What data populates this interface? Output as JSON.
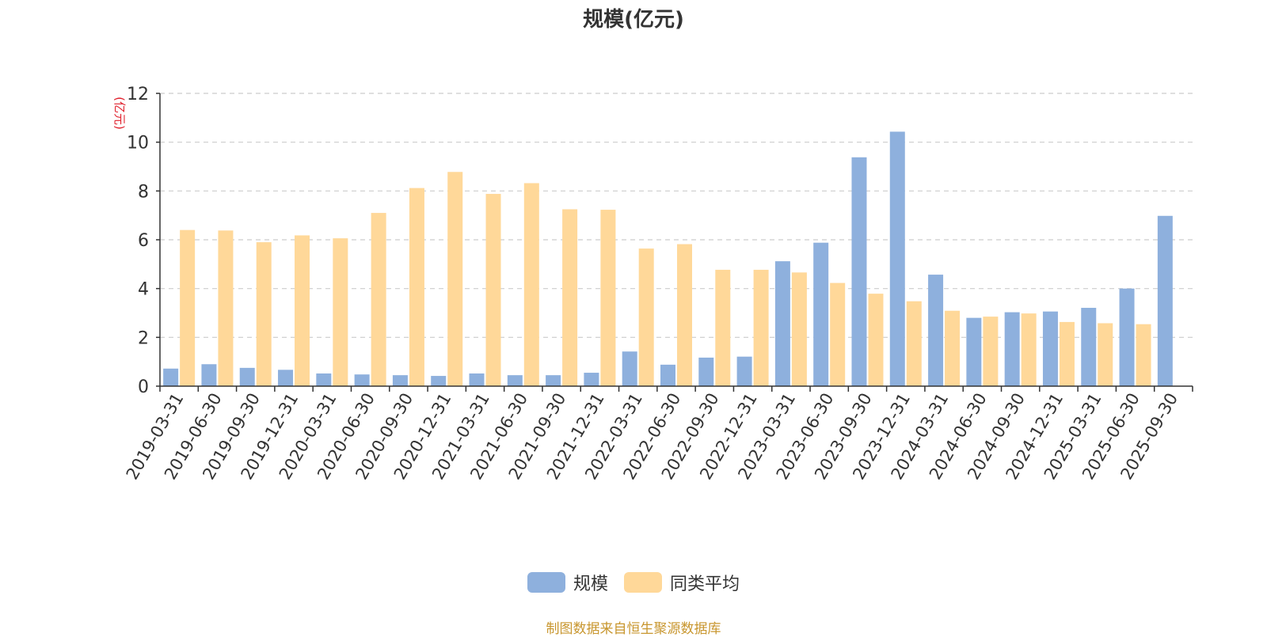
{
  "chart_data": {
    "type": "bar",
    "title": "规模(亿元)",
    "ylabel": "(亿元)",
    "ylim": [
      0,
      12
    ],
    "yticks": [
      0,
      2,
      4,
      6,
      8,
      10,
      12
    ],
    "grid": true,
    "legend_position": "bottom",
    "categories": [
      "2019-03-31",
      "2019-06-30",
      "2019-09-30",
      "2019-12-31",
      "2020-03-31",
      "2020-06-30",
      "2020-09-30",
      "2020-12-31",
      "2021-03-31",
      "2021-06-30",
      "2021-09-30",
      "2021-12-31",
      "2022-03-31",
      "2022-06-30",
      "2022-09-30",
      "2022-12-31",
      "2023-03-31",
      "2023-06-30",
      "2023-09-30",
      "2023-12-31",
      "2024-03-31",
      "2024-06-30",
      "2024-09-30",
      "2024-12-31",
      "2025-03-31",
      "2025-06-30",
      "2025-09-30"
    ],
    "series": [
      {
        "name": "规模",
        "color": "#8eb0dd",
        "values": [
          0.72,
          0.9,
          0.75,
          0.67,
          0.52,
          0.48,
          0.45,
          0.42,
          0.52,
          0.45,
          0.45,
          0.55,
          1.42,
          0.88,
          1.17,
          1.21,
          5.12,
          5.88,
          9.38,
          10.43,
          4.57,
          2.8,
          3.03,
          3.06,
          3.21,
          4.0,
          6.98
        ]
      },
      {
        "name": "同类平均",
        "color": "#ffd899",
        "values": [
          6.4,
          6.38,
          5.9,
          6.18,
          6.06,
          7.1,
          8.12,
          8.78,
          7.88,
          8.32,
          7.25,
          7.23,
          5.64,
          5.82,
          4.77,
          4.77,
          4.66,
          4.23,
          3.79,
          3.48,
          3.09,
          2.85,
          2.98,
          2.63,
          2.58,
          2.54,
          null
        ]
      }
    ]
  },
  "source_note": {
    "text": "制图数据来自恒生聚源数据库",
    "color": "#c8962e"
  },
  "colors": {
    "axis": "#333333",
    "grid": "#cccccc",
    "ylabel": "#e0202c",
    "text": "#333333"
  }
}
